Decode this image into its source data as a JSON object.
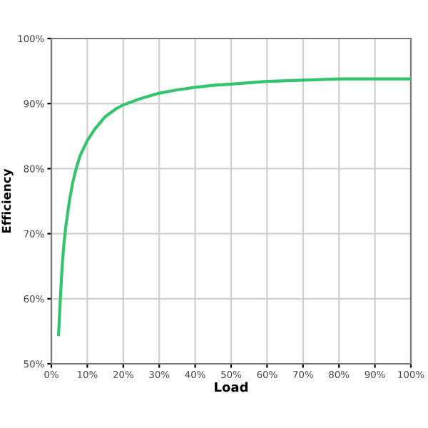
{
  "chart_data": {
    "type": "line",
    "xlabel": "Load",
    "ylabel": "Efficiency",
    "series": [
      {
        "color": "#33c46e",
        "x": [
          2,
          2.5,
          3,
          3.5,
          4,
          5,
          6,
          7,
          8,
          10,
          12,
          15,
          18,
          20,
          25,
          30,
          35,
          40,
          45,
          50,
          60,
          70,
          80,
          90,
          100
        ],
        "values": [
          54.5,
          60,
          65,
          68.5,
          71,
          75,
          78,
          80.2,
          82,
          84.3,
          86,
          88,
          89.2,
          89.8,
          90.8,
          91.6,
          92.1,
          92.5,
          92.8,
          93.0,
          93.4,
          93.6,
          93.8,
          93.8,
          93.8
        ]
      }
    ],
    "xlim": [
      0,
      100
    ],
    "ylim": [
      50,
      100
    ],
    "xticks": [
      {
        "value": 0,
        "label": "0%"
      },
      {
        "value": 10,
        "label": "10%"
      },
      {
        "value": 20,
        "label": "20%"
      },
      {
        "value": 30,
        "label": "30%"
      },
      {
        "value": 40,
        "label": "40%"
      },
      {
        "value": 50,
        "label": "50%"
      },
      {
        "value": 60,
        "label": "60%"
      },
      {
        "value": 70,
        "label": "70%"
      },
      {
        "value": 80,
        "label": "80%"
      },
      {
        "value": 90,
        "label": "90%"
      },
      {
        "value": 100,
        "label": "100%"
      }
    ],
    "yticks": [
      {
        "value": 50,
        "label": "50%"
      },
      {
        "value": 60,
        "label": "60%"
      },
      {
        "value": 70,
        "label": "70%"
      },
      {
        "value": 80,
        "label": "80%"
      },
      {
        "value": 90,
        "label": "90%"
      },
      {
        "value": 100,
        "label": "100%"
      }
    ],
    "grid": true,
    "marker": "none",
    "line_style": "solid"
  }
}
